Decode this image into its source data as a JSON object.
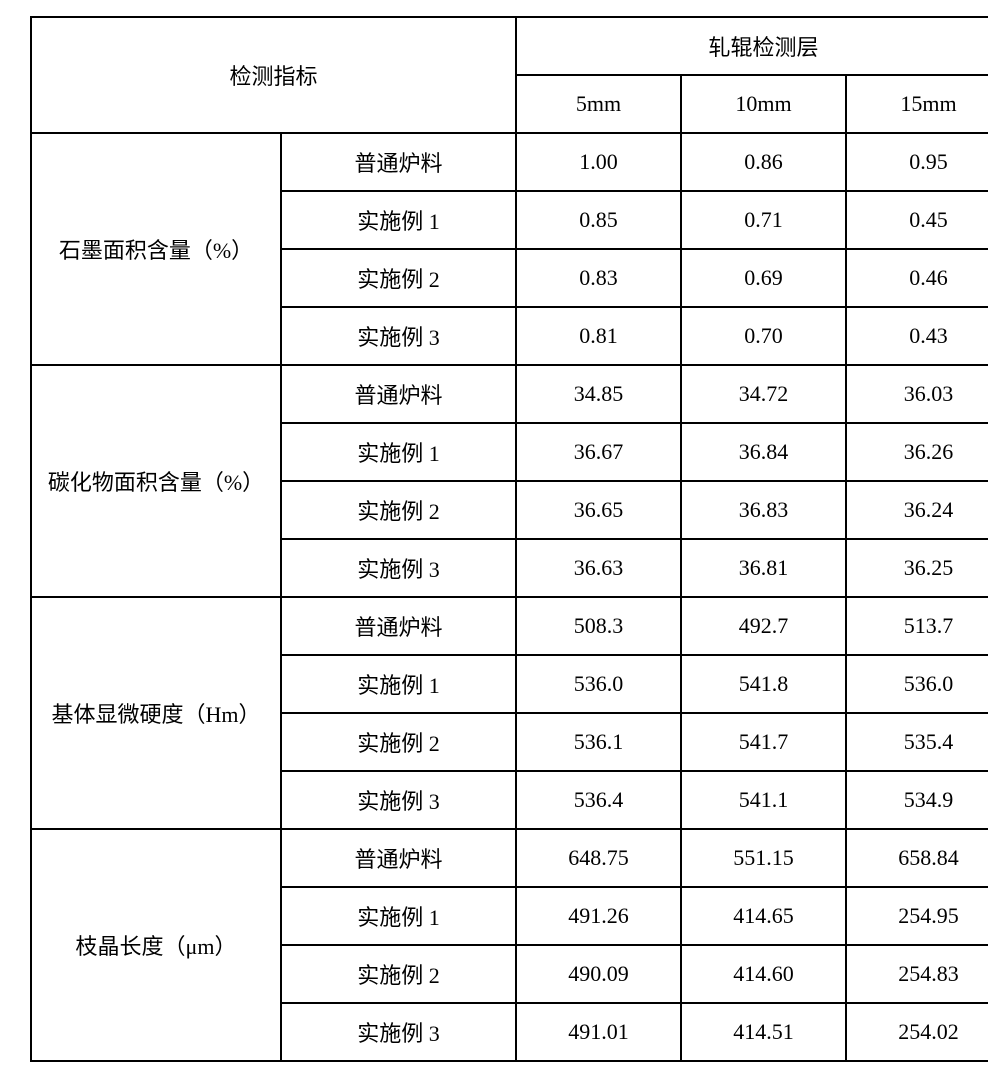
{
  "header": {
    "indicator": "检测指标",
    "detect_layer": "轧辊检测层",
    "thickness": [
      "5mm",
      "10mm",
      "15mm"
    ]
  },
  "groups": [
    {
      "name": "石墨面积含量（%）",
      "rows": [
        {
          "label": "普通炉料",
          "values": [
            "1.00",
            "0.86",
            "0.95"
          ]
        },
        {
          "label": "实施例 1",
          "values": [
            "0.85",
            "0.71",
            "0.45"
          ]
        },
        {
          "label": "实施例 2",
          "values": [
            "0.83",
            "0.69",
            "0.46"
          ]
        },
        {
          "label": "实施例 3",
          "values": [
            "0.81",
            "0.70",
            "0.43"
          ]
        }
      ]
    },
    {
      "name": "碳化物面积含量（%）",
      "rows": [
        {
          "label": "普通炉料",
          "values": [
            "34.85",
            "34.72",
            "36.03"
          ]
        },
        {
          "label": "实施例 1",
          "values": [
            "36.67",
            "36.84",
            "36.26"
          ]
        },
        {
          "label": "实施例 2",
          "values": [
            "36.65",
            "36.83",
            "36.24"
          ]
        },
        {
          "label": "实施例 3",
          "values": [
            "36.63",
            "36.81",
            "36.25"
          ]
        }
      ]
    },
    {
      "name": "基体显微硬度（Hm）",
      "rows": [
        {
          "label": "普通炉料",
          "values": [
            "508.3",
            "492.7",
            "513.7"
          ]
        },
        {
          "label": "实施例 1",
          "values": [
            "536.0",
            "541.8",
            "536.0"
          ]
        },
        {
          "label": "实施例 2",
          "values": [
            "536.1",
            "541.7",
            "535.4"
          ]
        },
        {
          "label": "实施例 3",
          "values": [
            "536.4",
            "541.1",
            "534.9"
          ]
        }
      ]
    },
    {
      "name": "枝晶长度（μm）",
      "rows": [
        {
          "label": "普通炉料",
          "values": [
            "648.75",
            "551.15",
            "658.84"
          ]
        },
        {
          "label": "实施例 1",
          "values": [
            "491.26",
            "414.65",
            "254.95"
          ]
        },
        {
          "label": "实施例 2",
          "values": [
            "490.09",
            "414.60",
            "254.83"
          ]
        },
        {
          "label": "实施例 3",
          "values": [
            "491.01",
            "414.51",
            "254.02"
          ]
        }
      ]
    }
  ]
}
